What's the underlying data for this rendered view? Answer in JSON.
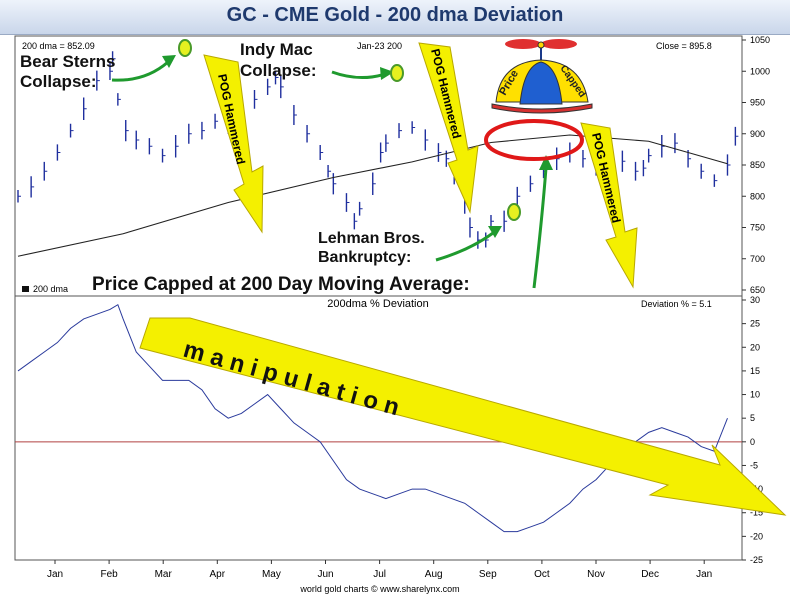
{
  "title": "GC - CME Gold - 200 dma Deviation",
  "footer": "world gold charts © www.sharelynx.com",
  "upper_panel": {
    "dma_readout": "200 dma = 852.09",
    "date_readout": "Jan-23 200",
    "close_readout": "Close = 895.8",
    "legend": "200 dma"
  },
  "lower_panel": {
    "title": "200dma % Deviation",
    "deviation_readout": "Deviation % = 5.1"
  },
  "annotations": {
    "bear_sterns": "Bear Sterns\nCollapse:",
    "indy_mac": "Indy Mac\nCollapse:",
    "lehman": "Lehman Bros.\nBankruptcy:",
    "price_capped": "Price Capped at 200 Day Moving Average:",
    "pog_hammered": "POG Hammered",
    "manipulation": "m a n i p u l a t i o n",
    "hat_left": "Price",
    "hat_right": "Capped"
  },
  "colors": {
    "price_bars": "#1f2f9e",
    "moving_average": "#222222",
    "deviation_line": "#2a3a9c",
    "zero_line": "#b04040",
    "arrow_yellow": "#f4f000",
    "arrow_green": "#1f9a2e",
    "highlight_circle": "#e01818",
    "title_text": "#1f3a6e"
  },
  "chart_data": [
    {
      "type": "line",
      "panel": "upper",
      "title": "GC - CME Gold - 200 dma Deviation",
      "x_ticks": [
        "Jan",
        "Feb",
        "Mar",
        "Apr",
        "May",
        "Jun",
        "Jul",
        "Aug",
        "Sep",
        "Oct",
        "Nov",
        "Dec",
        "Jan"
      ],
      "ylim": [
        650,
        1050
      ],
      "y_ticks": [
        650,
        700,
        750,
        800,
        850,
        900,
        950,
        1000,
        1050
      ],
      "grid": false,
      "series": [
        {
          "name": "",
          "style": "bars",
          "points": [
            [
              0,
              800
            ],
            [
              0.5,
              815
            ],
            [
              1,
              840
            ],
            [
              1.5,
              870
            ],
            [
              2,
              905
            ],
            [
              2.5,
              940
            ],
            [
              3,
              985
            ],
            [
              3.5,
              1000
            ],
            [
              3.6,
              1020
            ],
            [
              3.8,
              955
            ],
            [
              4.1,
              905
            ],
            [
              4.5,
              890
            ],
            [
              5,
              880
            ],
            [
              5.5,
              865
            ],
            [
              6,
              880
            ],
            [
              6.5,
              900
            ],
            [
              7,
              905
            ],
            [
              7.5,
              920
            ],
            [
              8,
              910
            ],
            [
              8.5,
              930
            ],
            [
              9,
              955
            ],
            [
              9.5,
              975
            ],
            [
              9.8,
              990
            ],
            [
              10,
              975
            ],
            [
              10.5,
              930
            ],
            [
              11,
              900
            ],
            [
              11.5,
              870
            ],
            [
              11.8,
              840
            ],
            [
              12,
              820
            ],
            [
              12.5,
              790
            ],
            [
              12.8,
              760
            ],
            [
              13,
              780
            ],
            [
              13.5,
              820
            ],
            [
              13.8,
              870
            ],
            [
              14,
              885
            ],
            [
              14.5,
              905
            ],
            [
              15,
              910
            ],
            [
              15.5,
              890
            ],
            [
              16,
              870
            ],
            [
              16.3,
              860
            ],
            [
              16.6,
              830
            ],
            [
              17,
              790
            ],
            [
              17.2,
              750
            ],
            [
              17.5,
              730
            ],
            [
              17.8,
              730
            ],
            [
              18,
              760
            ],
            [
              18.5,
              760
            ],
            [
              19,
              800
            ],
            [
              19.5,
              820
            ],
            [
              20,
              840
            ],
            [
              20.5,
              860
            ],
            [
              21,
              870
            ],
            [
              21.5,
              860
            ],
            [
              22,
              845
            ],
            [
              22.5,
              850
            ],
            [
              23,
              856
            ],
            [
              23.5,
              840
            ],
            [
              23.8,
              845
            ],
            [
              24,
              865
            ],
            [
              24.5,
              880
            ],
            [
              25,
              885
            ],
            [
              25.5,
              860
            ],
            [
              26,
              840
            ],
            [
              26.5,
              825
            ],
            [
              27,
              850
            ],
            [
              27.3,
              896
            ]
          ]
        },
        {
          "name": "200 dma",
          "style": "line",
          "points": [
            [
              0,
              704
            ],
            [
              4,
              740
            ],
            [
              8,
              790
            ],
            [
              12,
              830
            ],
            [
              15,
              855
            ],
            [
              18,
              886
            ],
            [
              21,
              898
            ],
            [
              24,
              888
            ],
            [
              27,
              852
            ]
          ]
        }
      ]
    },
    {
      "type": "line",
      "panel": "lower",
      "title": "200dma % Deviation",
      "x_ticks": [
        "Jan",
        "Feb",
        "Mar",
        "Apr",
        "May",
        "Jun",
        "Jul",
        "Aug",
        "Sep",
        "Oct",
        "Nov",
        "Dec",
        "Jan"
      ],
      "ylim": [
        -25,
        30
      ],
      "y_ticks": [
        -25,
        -20,
        -15,
        -10,
        -5,
        0,
        5,
        10,
        15,
        20,
        25,
        30
      ],
      "grid": false,
      "series": [
        {
          "name": "",
          "points": [
            [
              0,
              15
            ],
            [
              0.5,
              17
            ],
            [
              1,
              19
            ],
            [
              1.5,
              21
            ],
            [
              2,
              24
            ],
            [
              2.5,
              26
            ],
            [
              3,
              27
            ],
            [
              3.5,
              28
            ],
            [
              3.8,
              29
            ],
            [
              4,
              26
            ],
            [
              4.5,
              19
            ],
            [
              5,
              16
            ],
            [
              5.5,
              13
            ],
            [
              6,
              13
            ],
            [
              6.5,
              13
            ],
            [
              7,
              11
            ],
            [
              7.5,
              7
            ],
            [
              8,
              5
            ],
            [
              8.5,
              6
            ],
            [
              9,
              8
            ],
            [
              9.5,
              10
            ],
            [
              10,
              7
            ],
            [
              10.5,
              4
            ],
            [
              11,
              2
            ],
            [
              11.5,
              0
            ],
            [
              12,
              -4
            ],
            [
              12.5,
              -8
            ],
            [
              13,
              -10
            ],
            [
              13.5,
              -11
            ],
            [
              14,
              -12
            ],
            [
              14.5,
              -11
            ],
            [
              15,
              -10
            ],
            [
              15.5,
              -10
            ],
            [
              16,
              -11
            ],
            [
              16.5,
              -12
            ],
            [
              17,
              -13
            ],
            [
              17.5,
              -15
            ],
            [
              18,
              -17
            ],
            [
              18.5,
              -19
            ],
            [
              19,
              -19
            ],
            [
              19.5,
              -18
            ],
            [
              20,
              -17
            ],
            [
              20.5,
              -15
            ],
            [
              21,
              -13
            ],
            [
              21.5,
              -10
            ],
            [
              22,
              -8
            ],
            [
              22.5,
              -5
            ],
            [
              23,
              -2
            ],
            [
              23.5,
              0
            ],
            [
              24,
              2
            ],
            [
              24.5,
              3
            ],
            [
              25,
              2
            ],
            [
              25.5,
              1
            ],
            [
              26,
              -1
            ],
            [
              26.5,
              -2
            ],
            [
              27,
              5
            ]
          ]
        }
      ]
    }
  ]
}
